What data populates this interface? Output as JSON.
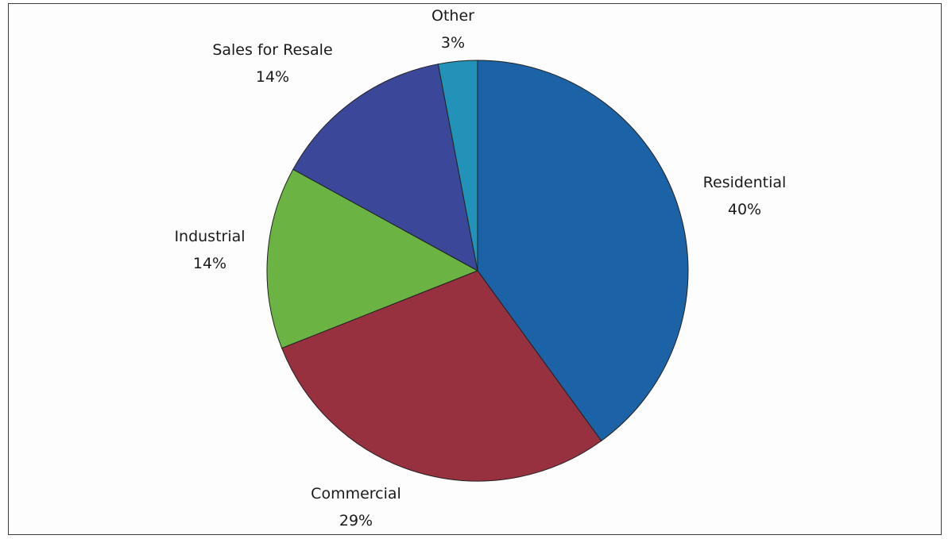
{
  "chart_data": {
    "type": "pie",
    "title": "",
    "slices": [
      {
        "label": "Residential",
        "value": 40,
        "value_label": "40%",
        "color": "#1b63a6"
      },
      {
        "label": "Commercial",
        "value": 29,
        "value_label": "29%",
        "color": "#97303f"
      },
      {
        "label": "Industrial",
        "value": 14,
        "value_label": "14%",
        "color": "#6bb343"
      },
      {
        "label": "Sales for Resale",
        "value": 14,
        "value_label": "14%",
        "color": "#3b4899"
      },
      {
        "label": "Other",
        "value": 3,
        "value_label": "3%",
        "color": "#2292b8"
      }
    ],
    "start": "12 o'clock",
    "direction": "clockwise",
    "legend": "none",
    "data_labels": "outside"
  }
}
